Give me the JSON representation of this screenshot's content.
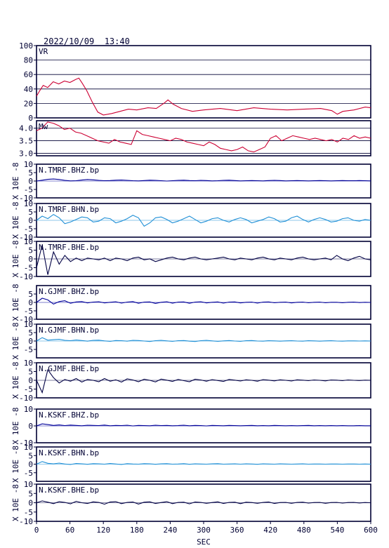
{
  "header": {
    "timestamp": "2022/10/09  13:40"
  },
  "xaxis": {
    "label": "SEC",
    "range": [
      0,
      600
    ],
    "ticks": [
      "0",
      "60",
      "120",
      "180",
      "240",
      "300",
      "360",
      "420",
      "480",
      "540",
      "600"
    ]
  },
  "ylabel_seis": "X 10E -8",
  "colors": {
    "frame": "#000033",
    "vr": "#cc0033",
    "mw": "#cc0033",
    "bhz": "#000099",
    "bhn": "#1f8fd6",
    "bhe": "#000044"
  },
  "chart_data": [
    {
      "type": "line",
      "name": "VR",
      "label": "VR",
      "ylim": [
        0,
        100
      ],
      "yticks": [
        "0",
        "20",
        "40",
        "60",
        "80",
        "100"
      ],
      "grid": true,
      "x": [
        0,
        6,
        12,
        20,
        30,
        40,
        50,
        60,
        70,
        76,
        82,
        90,
        100,
        110,
        120,
        135,
        150,
        165,
        180,
        200,
        215,
        230,
        236,
        245,
        260,
        280,
        300,
        330,
        360,
        390,
        420,
        450,
        480,
        510,
        530,
        540,
        550,
        570,
        590,
        600
      ],
      "y": [
        30,
        38,
        45,
        42,
        50,
        47,
        51,
        49,
        53,
        55,
        48,
        38,
        22,
        8,
        4,
        6,
        9,
        12,
        11,
        14,
        13,
        21,
        25,
        19,
        13,
        9,
        11,
        13,
        10,
        14,
        12,
        11,
        12,
        13,
        10,
        5,
        9,
        11,
        15,
        14
      ]
    },
    {
      "type": "line",
      "name": "Mw",
      "label": "Mw",
      "ylim": [
        2.9,
        4.3
      ],
      "yticks": [
        "3.0",
        "3.5",
        "4.0"
      ],
      "grid": true,
      "x": [
        0,
        10,
        20,
        30,
        40,
        50,
        60,
        70,
        80,
        90,
        100,
        110,
        120,
        130,
        140,
        150,
        160,
        170,
        180,
        190,
        200,
        210,
        220,
        230,
        240,
        250,
        260,
        270,
        280,
        290,
        300,
        310,
        320,
        330,
        340,
        350,
        360,
        370,
        380,
        390,
        400,
        410,
        420,
        430,
        440,
        450,
        460,
        470,
        480,
        490,
        500,
        510,
        520,
        530,
        540,
        550,
        560,
        570,
        580,
        590,
        600
      ],
      "y": [
        3.9,
        4.0,
        4.25,
        4.2,
        4.1,
        3.95,
        4.0,
        3.85,
        3.8,
        3.7,
        3.6,
        3.5,
        3.45,
        3.4,
        3.55,
        3.45,
        3.4,
        3.35,
        3.9,
        3.75,
        3.7,
        3.65,
        3.6,
        3.55,
        3.5,
        3.6,
        3.55,
        3.45,
        3.4,
        3.35,
        3.3,
        3.45,
        3.35,
        3.2,
        3.15,
        3.1,
        3.15,
        3.25,
        3.1,
        3.05,
        3.15,
        3.25,
        3.6,
        3.7,
        3.5,
        3.6,
        3.7,
        3.65,
        3.6,
        3.55,
        3.6,
        3.55,
        3.5,
        3.55,
        3.45,
        3.6,
        3.55,
        3.7,
        3.6,
        3.65,
        3.6
      ]
    },
    {
      "type": "line",
      "name": "N.TMRF.BHZ.bp",
      "label": "N.TMRF.BHZ.bp",
      "ylim": [
        -10,
        10
      ],
      "yticks": [
        "10",
        "5",
        "0",
        "-5",
        "-10"
      ],
      "color_key": "bhz",
      "samples": [
        0.0,
        0.5,
        1.0,
        1.2,
        0.9,
        0.4,
        0.1,
        0.2,
        0.6,
        0.9,
        0.7,
        0.4,
        0.2,
        0.3,
        0.5,
        0.6,
        0.4,
        0.2,
        0.1,
        0.3,
        0.5,
        0.4,
        0.2,
        0.0,
        0.2,
        0.4,
        0.5,
        0.3,
        0.2,
        0.4,
        0.3,
        0.1,
        0.2,
        0.4,
        0.5,
        0.3,
        0.1,
        0.2,
        0.3,
        0.2,
        0.1,
        0.3,
        0.4,
        0.3,
        0.1,
        0.2,
        0.3,
        0.2,
        0.1,
        0.2,
        0.3,
        0.2,
        0.1,
        0.2,
        0.3,
        0.2,
        0.2,
        0.3,
        0.2,
        0.1
      ]
    },
    {
      "type": "line",
      "name": "N.TMRF.BHN.bp",
      "label": "N.TMRF.BHN.bp",
      "ylim": [
        -10,
        10
      ],
      "yticks": [
        "10",
        "5",
        "0",
        "-5",
        "-10"
      ],
      "color_key": "bhn",
      "samples": [
        0.0,
        2.5,
        1.0,
        3.5,
        1.5,
        -2.0,
        -1.0,
        0.5,
        2.0,
        1.5,
        -1.0,
        -0.5,
        1.5,
        1.0,
        -1.5,
        -0.5,
        1.0,
        3.0,
        1.5,
        -3.5,
        -1.5,
        1.5,
        2.0,
        0.5,
        -1.5,
        -0.5,
        1.0,
        2.5,
        0.5,
        -1.5,
        -0.5,
        1.0,
        1.5,
        0.0,
        -1.0,
        0.5,
        1.5,
        0.5,
        -1.5,
        -0.5,
        0.5,
        2.0,
        1.0,
        -1.0,
        -0.5,
        1.5,
        2.5,
        0.5,
        -1.0,
        0.5,
        1.5,
        0.5,
        -1.0,
        -0.5,
        1.0,
        1.5,
        0.0,
        -0.5,
        0.5,
        0.0
      ]
    },
    {
      "type": "line",
      "name": "N.TMRF.BHE.bp",
      "label": "N.TMRF.BHE.bp",
      "ylim": [
        -10,
        10
      ],
      "yticks": [
        "10",
        "5",
        "0",
        "-5",
        "-10"
      ],
      "color_key": "bhe",
      "samples": [
        -5.0,
        8.0,
        -9.0,
        4.0,
        -3.0,
        2.0,
        -1.5,
        0.5,
        -1.0,
        0.5,
        0.0,
        -0.5,
        0.5,
        -1.0,
        0.5,
        0.0,
        -1.0,
        0.5,
        1.0,
        -0.5,
        0.0,
        -1.5,
        -0.5,
        0.5,
        1.0,
        0.0,
        -0.5,
        0.5,
        1.0,
        0.0,
        -0.5,
        0.0,
        0.5,
        1.0,
        0.0,
        -0.5,
        0.5,
        0.0,
        -0.5,
        0.5,
        1.0,
        0.0,
        -0.5,
        0.5,
        0.0,
        -0.5,
        0.5,
        1.0,
        0.0,
        -0.5,
        0.0,
        0.5,
        -0.5,
        2.0,
        0.0,
        -1.0,
        0.5,
        1.5,
        0.0,
        -0.5
      ]
    },
    {
      "type": "line",
      "name": "N.GJMF.BHZ.bp",
      "label": "N.GJMF.BHZ.bp",
      "ylim": [
        -10,
        10
      ],
      "yticks": [
        "5",
        "0",
        "-5",
        "-10"
      ],
      "color_key": "bhz",
      "samples": [
        0.0,
        2.5,
        1.5,
        -1.0,
        0.5,
        1.0,
        -0.5,
        0.3,
        0.5,
        -0.3,
        0.2,
        0.4,
        -0.3,
        0.1,
        0.4,
        -0.4,
        0.2,
        0.5,
        -0.5,
        0.2,
        0.3,
        -0.6,
        0.1,
        0.4,
        -0.4,
        0.2,
        0.3,
        -0.5,
        0.2,
        0.4,
        -0.3,
        0.1,
        0.3,
        -0.4,
        0.2,
        0.3,
        -0.3,
        0.1,
        0.2,
        -0.4,
        0.2,
        0.3,
        -0.2,
        0.1,
        0.2,
        -0.3,
        0.1,
        0.2,
        -0.2,
        0.1,
        0.2,
        -0.2,
        0.1,
        0.1,
        -0.2,
        0.1,
        0.2,
        -0.1,
        0.1,
        0.0
      ]
    },
    {
      "type": "line",
      "name": "N.GJMF.BHN.bp",
      "label": "N.GJMF.BHN.bp",
      "ylim": [
        -10,
        10
      ],
      "yticks": [
        "10",
        "5",
        "0",
        "-5"
      ],
      "color_key": "bhn",
      "samples": [
        0.0,
        2.0,
        0.5,
        0.8,
        1.0,
        0.4,
        0.2,
        0.6,
        0.3,
        -0.1,
        0.4,
        0.5,
        0.1,
        -0.2,
        0.3,
        0.2,
        -0.1,
        0.4,
        0.3,
        0.0,
        -0.3,
        0.2,
        0.4,
        0.1,
        -0.2,
        0.2,
        0.3,
        -0.1,
        -0.3,
        0.2,
        0.4,
        0.1,
        -0.2,
        0.1,
        0.3,
        0.0,
        -0.2,
        0.2,
        0.3,
        0.0,
        -0.1,
        0.2,
        0.1,
        -0.1,
        0.1,
        0.2,
        0.0,
        -0.1,
        0.2,
        0.1,
        -0.1,
        0.1,
        0.2,
        0.0,
        -0.1,
        0.1,
        0.1,
        0.0,
        0.1,
        0.0
      ]
    },
    {
      "type": "line",
      "name": "N.GJMF.BHE.bp",
      "label": "N.GJMF.BHE.bp",
      "ylim": [
        -10,
        10
      ],
      "yticks": [
        "10",
        "5",
        "0",
        "-5",
        "-10"
      ],
      "color_key": "bhe",
      "samples": [
        0.0,
        -7.0,
        6.0,
        1.5,
        -1.5,
        0.5,
        -0.5,
        1.0,
        -1.0,
        0.5,
        0.0,
        -0.8,
        1.0,
        -0.5,
        0.3,
        -1.0,
        0.8,
        0.2,
        -0.8,
        0.6,
        0.0,
        -0.9,
        0.7,
        0.1,
        -0.6,
        0.5,
        -0.2,
        -0.8,
        0.6,
        0.2,
        -0.5,
        0.4,
        -0.1,
        -0.6,
        0.5,
        0.1,
        -0.4,
        0.3,
        0.0,
        -0.5,
        0.4,
        0.1,
        -0.3,
        0.3,
        0.0,
        -0.4,
        0.3,
        0.1,
        -0.2,
        0.2,
        0.0,
        -0.3,
        0.2,
        0.1,
        -0.2,
        0.2,
        0.0,
        -0.1,
        0.1,
        0.0
      ]
    },
    {
      "type": "line",
      "name": "N.KSKF.BHZ.bp",
      "label": "N.KSKF.BHZ.bp",
      "ylim": [
        -10,
        10
      ],
      "yticks": [
        "10",
        "0",
        "-10"
      ],
      "color_key": "bhz",
      "samples": [
        0.0,
        1.2,
        0.8,
        0.3,
        0.6,
        0.2,
        0.5,
        0.3,
        0.1,
        0.4,
        0.3,
        0.2,
        0.5,
        0.1,
        0.3,
        0.2,
        0.4,
        0.0,
        0.3,
        0.2,
        0.1,
        0.4,
        0.2,
        0.3,
        0.1,
        0.2,
        0.4,
        0.1,
        0.3,
        0.2,
        0.0,
        0.3,
        0.2,
        0.1,
        0.3,
        0.2,
        0.1,
        0.2,
        0.3,
        0.1,
        0.2,
        0.1,
        0.3,
        0.2,
        0.1,
        0.2,
        0.1,
        0.2,
        0.3,
        0.1,
        0.2,
        0.1,
        0.2,
        0.1,
        0.2,
        0.1,
        0.1,
        0.2,
        0.1,
        0.1
      ]
    },
    {
      "type": "line",
      "name": "N.KSKF.BHN.bp",
      "label": "N.KSKF.BHN.bp",
      "ylim": [
        -10,
        10
      ],
      "yticks": [
        "10",
        "5",
        "0",
        "-5"
      ],
      "color_key": "bhn",
      "samples": [
        0.0,
        1.5,
        0.5,
        0.2,
        0.6,
        0.1,
        -0.2,
        0.4,
        0.2,
        -0.1,
        0.3,
        0.2,
        0.0,
        0.4,
        0.1,
        -0.2,
        0.3,
        0.1,
        0.0,
        0.3,
        0.2,
        -0.1,
        0.2,
        0.3,
        0.0,
        0.1,
        0.3,
        -0.1,
        0.2,
        0.1,
        0.0,
        0.2,
        0.3,
        0.0,
        0.1,
        0.2,
        0.0,
        0.2,
        0.1,
        -0.1,
        0.2,
        0.1,
        0.0,
        0.2,
        0.1,
        0.0,
        0.1,
        0.2,
        0.0,
        0.1,
        0.1,
        0.0,
        0.1,
        0.1,
        0.0,
        0.1,
        0.1,
        0.0,
        0.1,
        0.0
      ]
    },
    {
      "type": "line",
      "name": "N.KSKF.BHE.bp",
      "label": "N.KSKF.BHE.bp",
      "ylim": [
        -10,
        10
      ],
      "yticks": [
        "10",
        "5",
        "0",
        "-5",
        "-10"
      ],
      "color_key": "bhe",
      "samples": [
        0.0,
        1.0,
        0.3,
        -0.5,
        0.6,
        0.2,
        -0.6,
        0.8,
        0.0,
        -0.4,
        0.5,
        0.2,
        -0.8,
        0.4,
        0.6,
        -0.5,
        0.2,
        0.4,
        -0.7,
        0.3,
        0.5,
        -0.4,
        0.1,
        0.6,
        -0.5,
        0.2,
        0.3,
        -0.6,
        0.4,
        0.2,
        -0.3,
        0.1,
        0.5,
        -0.4,
        0.2,
        0.3,
        -0.5,
        0.3,
        0.1,
        -0.3,
        0.2,
        0.4,
        -0.4,
        0.1,
        0.2,
        -0.3,
        0.2,
        0.3,
        -0.2,
        0.1,
        0.2,
        -0.3,
        0.1,
        0.2,
        -0.2,
        0.1,
        0.2,
        -0.1,
        0.1,
        0.0
      ]
    }
  ]
}
